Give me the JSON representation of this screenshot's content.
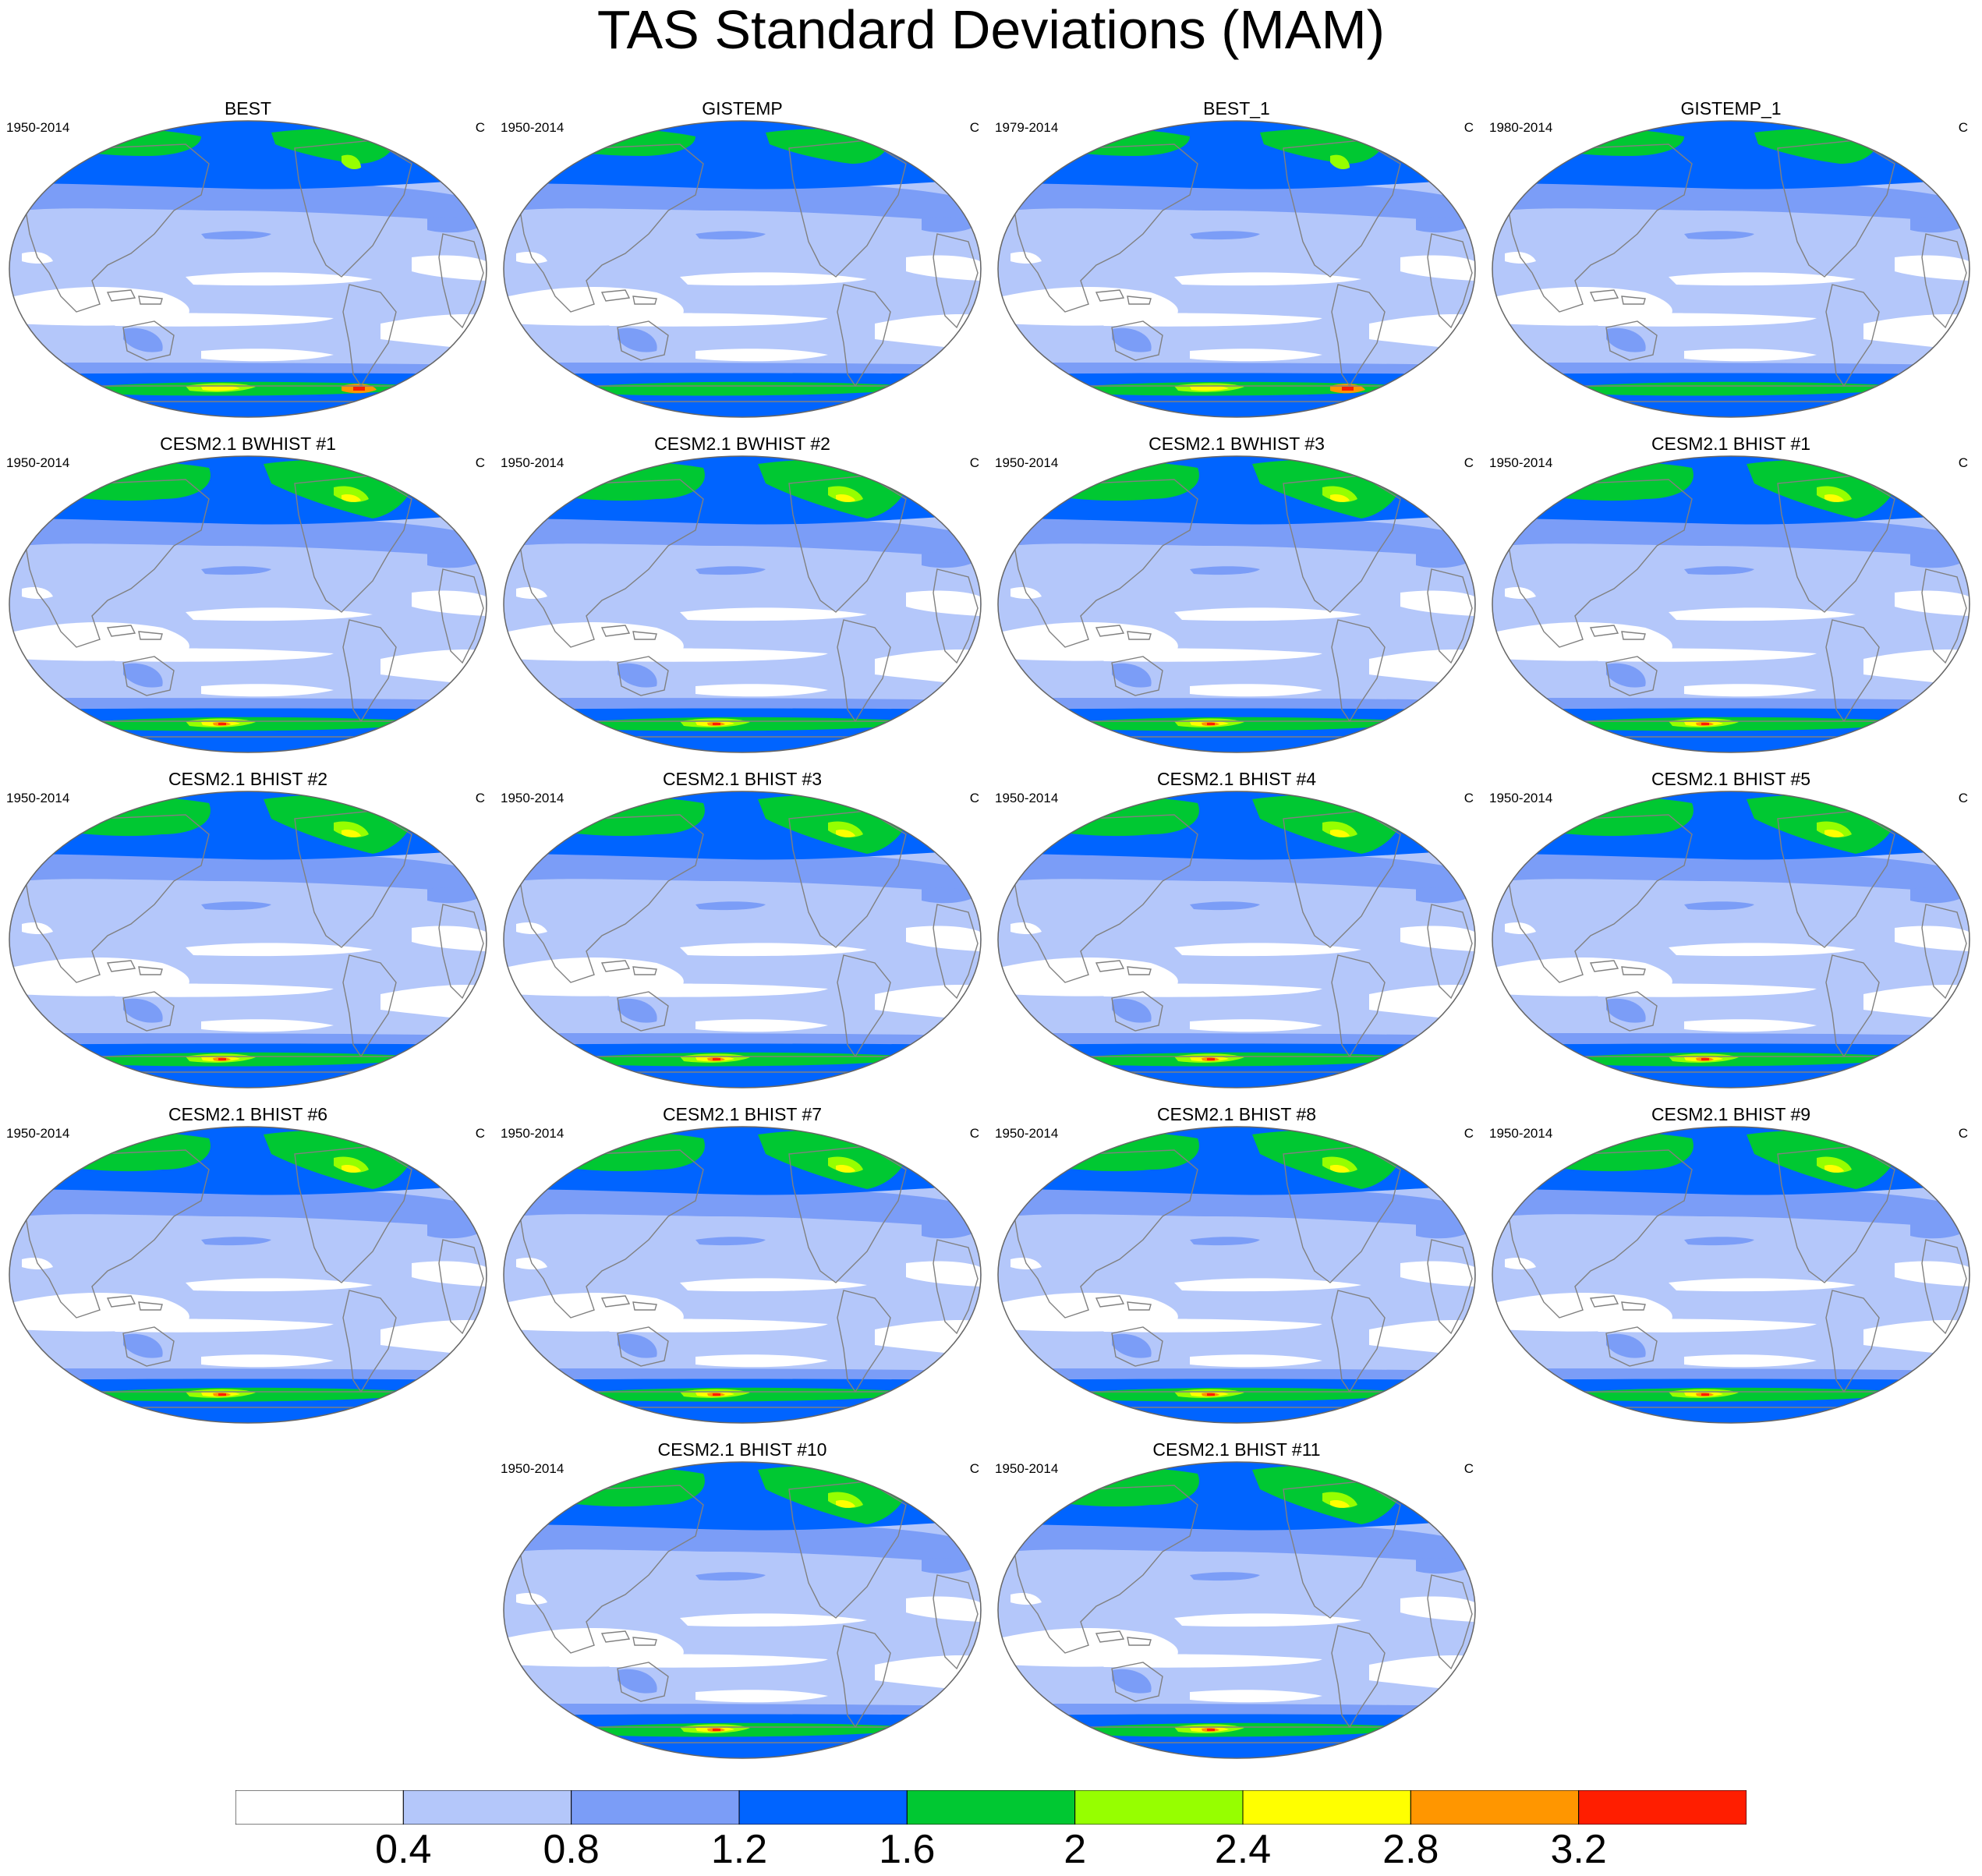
{
  "figure": {
    "title": "TAS Standard Deviations (MAM)",
    "units": "C"
  },
  "panels": [
    {
      "title": "BEST",
      "period": "1950-2014",
      "variant": "obs1"
    },
    {
      "title": "GISTEMP",
      "period": "1950-2014",
      "variant": "obs2"
    },
    {
      "title": "BEST_1",
      "period": "1979-2014",
      "variant": "obs1"
    },
    {
      "title": "GISTEMP_1",
      "period": "1980-2014",
      "variant": "obs2"
    },
    {
      "title": "CESM2.1 BWHIST #1",
      "period": "1950-2014",
      "variant": "model"
    },
    {
      "title": "CESM2.1 BWHIST #2",
      "period": "1950-2014",
      "variant": "model"
    },
    {
      "title": "CESM2.1 BWHIST #3",
      "period": "1950-2014",
      "variant": "model"
    },
    {
      "title": "CESM2.1 BHIST #1",
      "period": "1950-2014",
      "variant": "model"
    },
    {
      "title": "CESM2.1 BHIST #2",
      "period": "1950-2014",
      "variant": "model"
    },
    {
      "title": "CESM2.1 BHIST #3",
      "period": "1950-2014",
      "variant": "model"
    },
    {
      "title": "CESM2.1 BHIST #4",
      "period": "1950-2014",
      "variant": "model"
    },
    {
      "title": "CESM2.1 BHIST #5",
      "period": "1950-2014",
      "variant": "model"
    },
    {
      "title": "CESM2.1 BHIST #6",
      "period": "1950-2014",
      "variant": "model"
    },
    {
      "title": "CESM2.1 BHIST #7",
      "period": "1950-2014",
      "variant": "model"
    },
    {
      "title": "CESM2.1 BHIST #8",
      "period": "1950-2014",
      "variant": "model"
    },
    {
      "title": "CESM2.1 BHIST #9",
      "period": "1950-2014",
      "variant": "model"
    },
    {
      "title": "CESM2.1 BHIST #10",
      "period": "1950-2014",
      "variant": "model"
    },
    {
      "title": "CESM2.1 BHIST #11",
      "period": "1950-2014",
      "variant": "model"
    }
  ],
  "colorbar": {
    "colors": [
      "#ffffff",
      "#b4c7fa",
      "#7b9df7",
      "#0064ff",
      "#00c832",
      "#96ff00",
      "#ffff00",
      "#ff9600",
      "#ff1e00"
    ],
    "labels": [
      "0.4",
      "0.8",
      "1.2",
      "1.6",
      "2",
      "2.4",
      "2.8",
      "3.2"
    ]
  },
  "map_style": {
    "ocean_base": "#b4c7fa",
    "coast_color": "#808080",
    "outline_color": "#666666"
  }
}
